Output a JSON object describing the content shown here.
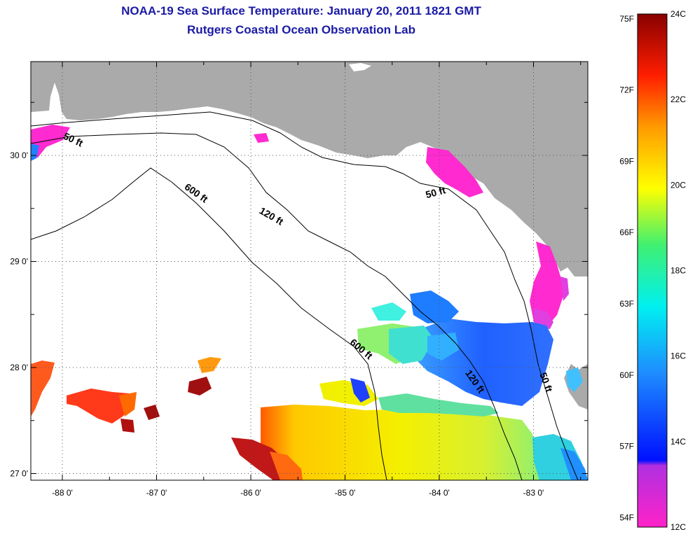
{
  "title": "NOAA-19 Sea Surface Temperature:  January 20, 2011 1821 GMT",
  "subtitle": "Rutgers Coastal Ocean Observation Lab",
  "lat_ticks": [
    {
      "value": 30,
      "label": "30 0'"
    },
    {
      "value": 29,
      "label": "29 0'"
    },
    {
      "value": 28,
      "label": "28 0'"
    },
    {
      "value": 27,
      "label": "27 0'"
    }
  ],
  "lon_ticks": [
    {
      "value": -88,
      "label": "-88 0'"
    },
    {
      "value": -87,
      "label": "-87 0'"
    },
    {
      "value": -86,
      "label": "-86 0'"
    },
    {
      "value": -85,
      "label": "-85 0'"
    },
    {
      "value": -84,
      "label": "-84 0'"
    },
    {
      "value": -83,
      "label": "-83 0'"
    }
  ],
  "contour_labels": [
    {
      "text": "50 ft",
      "lon": -87.9,
      "lat": 30.12
    },
    {
      "text": "600 ft",
      "lon": -86.6,
      "lat": 29.62
    },
    {
      "text": "120 ft",
      "lon": -85.8,
      "lat": 29.4
    },
    {
      "text": "50 ft",
      "lon": -84.03,
      "lat": 29.62
    },
    {
      "text": "600 ft",
      "lon": -84.85,
      "lat": 28.15
    },
    {
      "text": "120 ft",
      "lon": -83.65,
      "lat": 27.85
    },
    {
      "text": "50 ft",
      "lon": -82.9,
      "lat": 27.85
    }
  ],
  "colorbar": {
    "fahrenheit_labels": [
      "75F",
      "72F",
      "69F",
      "66F",
      "63F",
      "60F",
      "57F",
      "54F"
    ],
    "celsius_labels": [
      "24C",
      "22C",
      "20C",
      "18C",
      "16C",
      "14C",
      "12C"
    ]
  },
  "colors": {
    "land": "#aaaaaa",
    "water_nodata": "#ffffff",
    "title": "#1a1aa6"
  }
}
